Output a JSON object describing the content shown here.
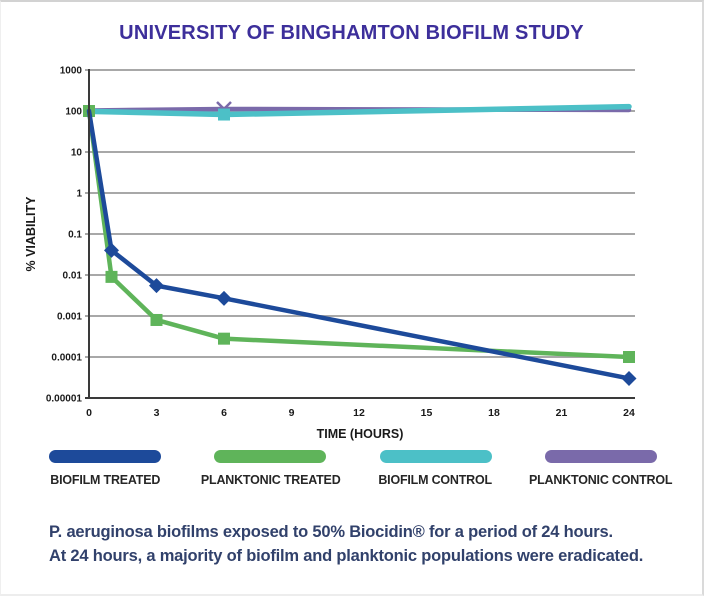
{
  "header": {
    "title": "UNIVERSITY OF BINGHAMTON BIOFILM STUDY",
    "title_color": "#3d2f9b"
  },
  "chart_data": {
    "type": "line",
    "title": "UNIVERSITY OF BINGHAMTON BIOFILM STUDY",
    "xlabel": "TIME (HOURS)",
    "ylabel": "% VIABILITY",
    "y_scale": "log",
    "xlim": [
      0,
      24
    ],
    "ylim": [
      1e-05,
      1000
    ],
    "grid": "horizontal",
    "x_ticks": [
      "0",
      "3",
      "6",
      "9",
      "12",
      "15",
      "18",
      "21",
      "24"
    ],
    "y_ticks": [
      {
        "label": "1000",
        "value": 1000
      },
      {
        "label": "100",
        "value": 100
      },
      {
        "label": "10",
        "value": 10
      },
      {
        "label": "1",
        "value": 1
      },
      {
        "label": "0.1",
        "value": 0.1
      },
      {
        "label": "0.01",
        "value": 0.01
      },
      {
        "label": "0.001",
        "value": 0.001
      },
      {
        "label": "0.0001",
        "value": 0.0001
      },
      {
        "label": "0.00001",
        "value": 1e-05
      }
    ],
    "colors": {
      "grid": "#a8a8a8",
      "axis": "#3a3a3a",
      "tick_text": "#1a1a1a"
    },
    "series": [
      {
        "name": "BIOFILM TREATED",
        "color": "#1d4a9a",
        "width": 4.5,
        "marker": "diamond",
        "marker_size": 13,
        "marker_x": [
          1,
          3,
          6,
          24
        ],
        "points": [
          [
            0,
            100
          ],
          [
            1,
            0.04
          ],
          [
            3,
            0.0055
          ],
          [
            6,
            0.0027
          ],
          [
            24,
            3e-05
          ]
        ]
      },
      {
        "name": "PLANKTONIC TREATED",
        "color": "#5fb45a",
        "width": 4.5,
        "marker": "square",
        "marker_size": 12,
        "marker_x": [
          0,
          1,
          3,
          6,
          24
        ],
        "points": [
          [
            0,
            100
          ],
          [
            1,
            0.009
          ],
          [
            3,
            0.0008
          ],
          [
            6,
            0.00028
          ],
          [
            24,
            0.0001
          ]
        ]
      },
      {
        "name": "BIOFILM CONTROL",
        "color": "#4cc0c7",
        "width": 5.5,
        "marker": "square",
        "marker_size": 12,
        "marker_x": [
          6
        ],
        "points": [
          [
            0,
            98
          ],
          [
            6,
            82
          ],
          [
            24,
            128
          ]
        ]
      },
      {
        "name": "PLANKTONIC CONTROL",
        "color": "#7a6aaa",
        "width": 4.5,
        "marker": "x",
        "marker_size": 14,
        "marker_x": [
          6
        ],
        "points": [
          [
            0,
            103
          ],
          [
            6,
            112
          ],
          [
            24,
            106
          ]
        ]
      }
    ],
    "legend_position": "bottom"
  },
  "legend": {
    "items": [
      {
        "label": "BIOFILM TREATED",
        "color": "#1d4a9a"
      },
      {
        "label": "PLANKTONIC TREATED",
        "color": "#5fb45a"
      },
      {
        "label": "BIOFILM CONTROL",
        "color": "#4cc0c7"
      },
      {
        "label": "PLANKTONIC CONTROL",
        "color": "#7a6aaa"
      }
    ]
  },
  "caption": {
    "line1": "P. aeruginosa biofilms exposed to 50% Biocidin® for a period of 24 hours.",
    "line2": "At 24 hours, a majority of biofilm and planktonic populations were eradicated."
  }
}
